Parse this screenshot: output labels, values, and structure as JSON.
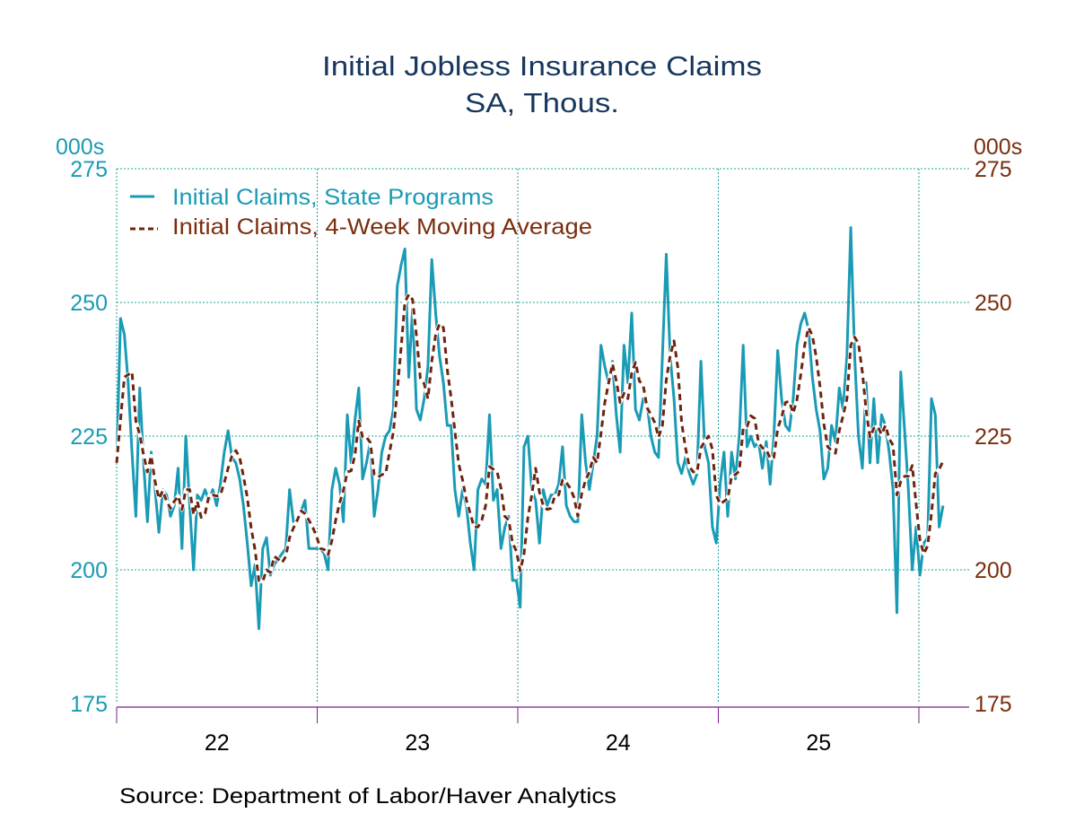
{
  "chart_data": {
    "type": "line",
    "title": "Initial Jobless Insurance Claims",
    "subtitle": "SA, Thous.",
    "y_unit_left": "000s",
    "y_unit_right": "000s",
    "ylim": [
      175,
      275
    ],
    "y_ticks": [
      "175",
      "200",
      "225",
      "250",
      "275"
    ],
    "x_ticks": [
      "22",
      "23",
      "24",
      "25"
    ],
    "x_start_year": 2022,
    "frequency": "weekly",
    "grid": true,
    "legend_position": "top-left",
    "source": "Source:  Department of Labor/Haver Analytics",
    "colors": {
      "title": "#17375e",
      "left_axis": "#1a9bb5",
      "right_axis": "#7a2e0e",
      "series_1": "#1a9bb5",
      "series_2": "#6e2410",
      "grid": "#1aa39a",
      "x_axis": "#7a1f8a"
    },
    "series": [
      {
        "name": "Initial Claims, State Programs",
        "style": "solid",
        "values": [
          220,
          247,
          244,
          235,
          222,
          210,
          234,
          220,
          209,
          222,
          215,
          207,
          215,
          214,
          210,
          212,
          219,
          204,
          225,
          212,
          200,
          214,
          213,
          215,
          213,
          215,
          212,
          216,
          222,
          226,
          221,
          220,
          217,
          212,
          205,
          197,
          201,
          189,
          204,
          206,
          199,
          201,
          202,
          203,
          204,
          215,
          209,
          209,
          211,
          213,
          204,
          204,
          204,
          204,
          203,
          200,
          215,
          219,
          216,
          209,
          229,
          220,
          228,
          234,
          217,
          220,
          224,
          210,
          215,
          222,
          225,
          226,
          230,
          253,
          257,
          260,
          236,
          249,
          230,
          228,
          232,
          238,
          258,
          248,
          240,
          235,
          227,
          227,
          215,
          210,
          215,
          212,
          205,
          200,
          215,
          217,
          216,
          229,
          213,
          215,
          204,
          208,
          210,
          198,
          198,
          193,
          223,
          225,
          215,
          213,
          205,
          215,
          212,
          214,
          214,
          216,
          223,
          212,
          210,
          209,
          209,
          229,
          220,
          215,
          220,
          225,
          242,
          238,
          235,
          239,
          229,
          222,
          242,
          235,
          248,
          230,
          228,
          232,
          231,
          225,
          222,
          221,
          240,
          259,
          240,
          232,
          220,
          218,
          221,
          218,
          216,
          218,
          239,
          223,
          220,
          208,
          205,
          216,
          222,
          210,
          222,
          217,
          225,
          242,
          223,
          225,
          223,
          224,
          219,
          224,
          216,
          225,
          241,
          232,
          227,
          226,
          232,
          242,
          246,
          248,
          245,
          236,
          230,
          226,
          217,
          219,
          227,
          224,
          234,
          230,
          240,
          264,
          240,
          225,
          219,
          235,
          220,
          232,
          220,
          229,
          227,
          222,
          215,
          192,
          237,
          226,
          215,
          200,
          208,
          199,
          205,
          206,
          232,
          229,
          208,
          212
        ]
      },
      {
        "name": "Initial Claims, 4-Week Moving Average",
        "style": "dashed",
        "values": [
          220,
          228,
          236,
          236.5,
          237,
          227.8,
          225.3,
          221.5,
          218.3,
          221.3,
          216.5,
          213.3,
          214.8,
          212.8,
          211.5,
          212.8,
          213.8,
          211.3,
          215,
          215,
          210.3,
          212.8,
          209.8,
          210.5,
          213.8,
          214,
          213.8,
          214,
          216.3,
          219,
          221.3,
          222.3,
          221,
          217.5,
          213.5,
          207.8,
          203.8,
          198,
          197.8,
          200,
          199.5,
          202.5,
          202,
          201.3,
          202.5,
          206,
          207.8,
          209.3,
          211,
          210.5,
          209.3,
          208,
          206.3,
          204,
          203.8,
          202.8,
          205.5,
          209.3,
          212.5,
          214.8,
          218.3,
          218.5,
          221.5,
          227.8,
          224.8,
          224.8,
          223.8,
          217.8,
          217.3,
          217.8,
          218,
          222,
          225.8,
          233.5,
          241.5,
          250,
          251.5,
          250.5,
          243.8,
          235.8,
          234.8,
          232,
          239,
          244,
          246,
          245.3,
          237.5,
          232.3,
          226,
          219.8,
          216.8,
          213,
          210.5,
          208,
          208,
          209.3,
          212,
          219.3,
          218.8,
          218.3,
          215.3,
          210,
          209.3,
          205,
          203.5,
          199.8,
          203,
          209.8,
          214,
          219,
          214.5,
          212,
          211.3,
          211.5,
          213.8,
          214,
          216.8,
          216.3,
          215.3,
          213.5,
          210,
          214.3,
          216.8,
          218.3,
          221,
          220,
          225.5,
          231.3,
          235,
          238.5,
          235.3,
          231.3,
          233,
          232,
          236.8,
          238.8,
          235.3,
          234.5,
          230.3,
          229,
          227.5,
          224.8,
          227,
          235.5,
          240,
          242.8,
          237.8,
          227.5,
          222.8,
          219.3,
          218.3,
          218.3,
          222.8,
          224,
          225,
          222.5,
          214,
          212.3,
          212.8,
          213.3,
          217.5,
          217.8,
          218.5,
          226.5,
          226.8,
          228.8,
          228.3,
          223.8,
          222.8,
          222.5,
          220.8,
          221,
          226.5,
          228.5,
          231.3,
          231.5,
          229.3,
          231.8,
          236.5,
          242,
          245.3,
          243.8,
          239.8,
          234.3,
          227.3,
          223,
          222.3,
          221.8,
          226,
          228.8,
          232,
          242,
          243.5,
          242.3,
          237,
          229.8,
          224.8,
          226.5,
          226.8,
          225.3,
          227,
          224.5,
          223.3,
          214,
          216.5,
          217.5,
          217.5,
          219.5,
          212.3,
          205.5,
          203,
          204.5,
          210.5,
          218,
          218.8,
          220.3
        ]
      }
    ]
  }
}
